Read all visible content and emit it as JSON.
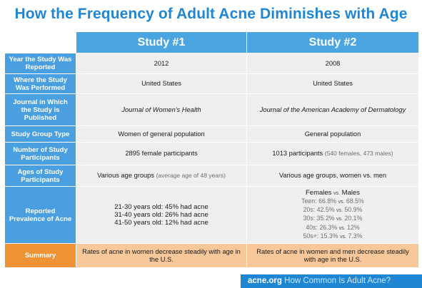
{
  "title": "How the Frequency of Adult Acne Diminishes with Age",
  "columns": {
    "study1": "Study #1",
    "study2": "Study #2"
  },
  "rows": {
    "year": {
      "label": "Year the Study Was Reported",
      "s1": "2012",
      "s2": "2008"
    },
    "where": {
      "label": "Where the Study Was Performed",
      "s1": "United States",
      "s2": "United States"
    },
    "journal": {
      "label": "Journal in Which the Study is Published",
      "s1": "Journal of Women's Health",
      "s2": "Journal of the American Academy of Dermatology"
    },
    "type": {
      "label": "Study Group Type",
      "s1": "Women of general population",
      "s2": "General population"
    },
    "number": {
      "label": "Number of Study Participants",
      "s1": "2895 female participants",
      "s2_main": "1013 participants",
      "s2_note": "(540 females, 473 males)"
    },
    "ages": {
      "label": "Ages of Study Participants",
      "s1_main": "Various age groups",
      "s1_note": "(average age of 48 years)",
      "s2": "Various age groups, women vs. men"
    },
    "prevalence": {
      "label": "Reported Prevalence of Acne",
      "s1_lines": [
        "21-30 years old: 45% had acne",
        "31-40 years old: 26% had acne",
        "41-50 years old: 12% had acne"
      ],
      "s2_header": {
        "a": "Females",
        "vs": "vs.",
        "b": "Males"
      },
      "s2_lines": [
        {
          "age": "Teen: 66.8%",
          "vs": "vs.",
          "male": "68.5%"
        },
        {
          "age": "20s: 42.5%",
          "vs": "vs.",
          "male": "50.9%"
        },
        {
          "age": "30s: 35.2%",
          "vs": "vs.",
          "male": "20.1%"
        },
        {
          "age": "40s: 26.3%",
          "vs": "vs.",
          "male": "12%"
        },
        {
          "age": "50s+: 15.3%",
          "vs": "vs.",
          "male": "7.3%"
        }
      ]
    },
    "summary": {
      "label": "Summary",
      "s1": "Rates of acne in women decrease steadily with age in the U.S.",
      "s2": "Rates of acne in women and men decrease steadily with age in the U.S."
    }
  },
  "footer": {
    "brand": "acne.org",
    "tagline": "How Common Is Adult Acne?"
  },
  "colors": {
    "title": "#1f86d4",
    "header": "#4aa5e0",
    "label": "#4a9fe0",
    "cell": "#efefef",
    "summary_label": "#ee9436",
    "summary_cell": "#f8c89b"
  }
}
